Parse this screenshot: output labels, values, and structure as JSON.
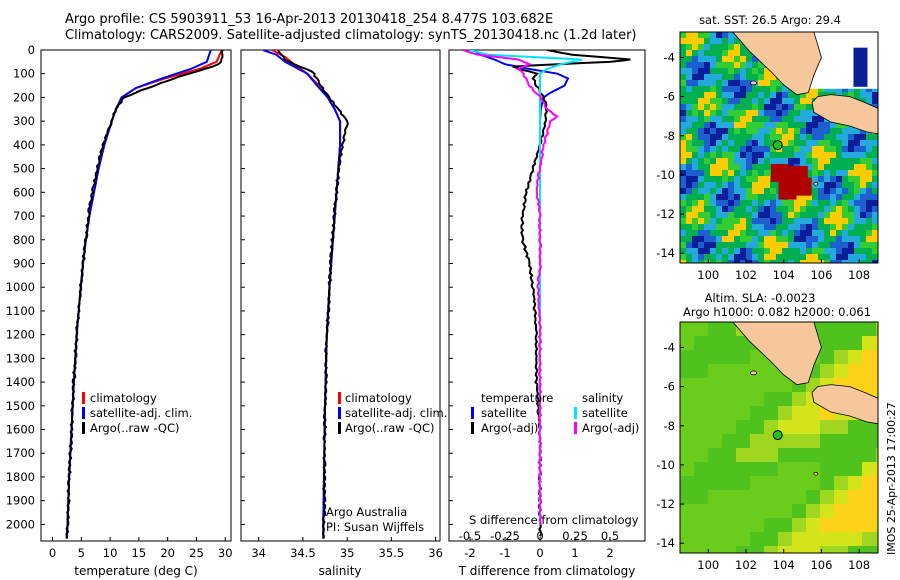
{
  "title": {
    "line1": "Argo profile: CS 5903911_53 16-Apr-2013 20130418_254 8.477S 103.682E",
    "line2": "Climatology: CARS2009. Satellite-adjusted climatology: synTS_20130418.nc (1.2d later)"
  },
  "colors": {
    "red": "#ff0000",
    "blue": "#0000ff",
    "black": "#000000",
    "cyan": "#00e5ff",
    "magenta": "#ff00ff",
    "land": "#f5c79a"
  },
  "depth_axis": {
    "ticks": [
      0,
      100,
      200,
      300,
      400,
      500,
      600,
      700,
      800,
      900,
      1000,
      1100,
      1200,
      1300,
      1400,
      1500,
      1600,
      1700,
      1800,
      1900,
      2000
    ],
    "ylim": [
      0,
      2070
    ],
    "inverted": true
  },
  "chart_data": [
    {
      "type": "line",
      "panel": "temperature",
      "xlabel": "temperature (deg C)",
      "ylabel": "",
      "xlim": [
        -2,
        31
      ],
      "xticks": [
        0,
        5,
        10,
        15,
        20,
        25,
        30
      ],
      "legend": [
        "climatology",
        "satellite-adj. clim.",
        "Argo(..raw -QC)"
      ],
      "series": [
        {
          "name": "climatology",
          "color": "red",
          "depth": [
            0,
            50,
            80,
            120,
            160,
            200,
            250,
            300,
            400,
            500,
            600,
            700,
            800,
            900,
            1000,
            1200,
            1400,
            1600,
            1800,
            2000,
            2060
          ],
          "values": [
            29.4,
            28.5,
            25.5,
            19.5,
            14.5,
            12,
            11,
            10.3,
            9,
            8,
            7.2,
            6.4,
            5.8,
            5.3,
            4.9,
            4.2,
            3.7,
            3.3,
            2.9,
            2.6,
            2.5
          ]
        },
        {
          "name": "satellite-adj. clim.",
          "color": "blue",
          "depth": [
            0,
            50,
            80,
            120,
            160,
            200,
            250,
            300,
            400,
            500,
            600,
            700,
            800,
            900,
            1000,
            1200,
            1400,
            1600,
            1800,
            2000,
            2060
          ],
          "values": [
            27.5,
            26.8,
            24,
            19,
            14.5,
            12,
            11,
            10.3,
            9,
            8,
            7.2,
            6.4,
            5.8,
            5.3,
            4.9,
            4.2,
            3.7,
            3.3,
            2.9,
            2.6,
            2.5
          ]
        },
        {
          "name": "Argo(..raw -QC)",
          "color": "black",
          "depth": [
            0,
            20,
            50,
            70,
            90,
            120,
            160,
            200,
            250,
            300,
            400,
            500,
            600,
            700,
            800,
            900,
            1000,
            1200,
            1400,
            1600,
            1800,
            2000,
            2060
          ],
          "values": [
            29.5,
            29.4,
            29.3,
            28,
            25,
            21,
            16.5,
            12.5,
            11,
            10.2,
            8.8,
            7.7,
            6.9,
            6.2,
            5.8,
            5.3,
            4.9,
            4.2,
            3.7,
            3.3,
            2.9,
            2.6,
            2.5
          ]
        }
      ]
    },
    {
      "type": "line",
      "panel": "salinity",
      "xlabel": "salinity",
      "ylabel": "",
      "xlim": [
        33.8,
        36.05
      ],
      "xticks": [
        34,
        34.5,
        35,
        35.5,
        36
      ],
      "legend": [
        "climatology",
        "satellite-adj. clim.",
        "Argo(..raw -QC)"
      ],
      "annotation": [
        "Argo Australia",
        "PI: Susan Wijffels"
      ],
      "series": [
        {
          "name": "climatology",
          "color": "red",
          "depth": [
            0,
            30,
            60,
            100,
            150,
            200,
            250,
            300,
            400,
            500,
            600,
            800,
            1000,
            1200,
            1500,
            2000,
            2060
          ],
          "values": [
            34.15,
            34.3,
            34.4,
            34.55,
            34.68,
            34.78,
            34.86,
            34.92,
            34.92,
            34.9,
            34.88,
            34.84,
            34.8,
            34.77,
            34.75,
            34.73,
            34.73
          ]
        },
        {
          "name": "satellite-adj. clim.",
          "color": "blue",
          "depth": [
            0,
            20,
            50,
            80,
            100,
            150,
            200,
            250,
            300,
            400,
            500,
            600,
            800,
            1000,
            1200,
            1500,
            2000,
            2060
          ],
          "values": [
            34.05,
            34.2,
            34.3,
            34.45,
            34.55,
            34.66,
            34.78,
            34.86,
            34.92,
            34.92,
            34.9,
            34.88,
            34.84,
            34.8,
            34.77,
            34.75,
            34.73,
            34.73
          ]
        },
        {
          "name": "Argo(..raw -QC)",
          "color": "black",
          "depth": [
            0,
            20,
            40,
            60,
            80,
            100,
            150,
            200,
            250,
            300,
            400,
            500,
            600,
            800,
            1000,
            1200,
            1500,
            2000,
            2060
          ],
          "values": [
            34.22,
            34.25,
            34.3,
            34.4,
            34.55,
            34.62,
            34.7,
            34.8,
            34.9,
            35.0,
            34.95,
            34.9,
            34.88,
            34.83,
            34.8,
            34.77,
            34.75,
            34.74,
            34.73
          ]
        }
      ]
    },
    {
      "type": "line",
      "panel": "difference",
      "xlabel": "T difference from climatology",
      "xlabel_top": "S difference from climatology",
      "xlim": [
        -2.6,
        3.0
      ],
      "xticks": [
        -2,
        -1,
        0,
        1,
        2
      ],
      "s_ticks": [
        "-0.5",
        "-0.25",
        "0",
        "0.25",
        "0.5"
      ],
      "s_tick_values": [
        -2,
        -1,
        0,
        1,
        2
      ],
      "legend_headers": [
        "temperature",
        "salinity"
      ],
      "legend": [
        "satellite",
        "Argo(-adj)",
        "satellite",
        "Argo(-adj)"
      ],
      "series": [
        {
          "name": "satellite",
          "group": "temperature",
          "color": "blue",
          "depth": [
            0,
            20,
            40,
            60,
            80,
            100,
            120,
            150,
            180,
            200,
            250,
            300,
            400,
            600,
            1000,
            1500,
            2000
          ],
          "values": [
            -1.9,
            -1.7,
            -1.3,
            -1.0,
            -0.3,
            0.5,
            0.8,
            0.7,
            0.3,
            0.1,
            0.02,
            0.0,
            0.0,
            0.0,
            0.0,
            0.0,
            0.0
          ]
        },
        {
          "name": "Argo(-adj)",
          "group": "temperature",
          "color": "black",
          "depth": [
            0,
            20,
            40,
            50,
            60,
            70,
            80,
            100,
            120,
            150,
            200,
            250,
            300,
            400,
            500,
            600,
            700,
            800,
            900,
            1000,
            1200,
            1400,
            1600,
            1800,
            2000,
            2050
          ],
          "values": [
            0.2,
            0.9,
            2.6,
            2.0,
            0.5,
            -0.8,
            -0.6,
            -0.1,
            -0.2,
            -0.1,
            0.1,
            0.2,
            0.15,
            0.0,
            -0.2,
            -0.4,
            -0.5,
            -0.5,
            -0.3,
            -0.2,
            -0.1,
            -0.1,
            0.0,
            0.0,
            0.0,
            0.0
          ]
        },
        {
          "name": "satellite",
          "group": "salinity",
          "color": "cyan",
          "depth": [
            0,
            20,
            40,
            60,
            80,
            100,
            150,
            200,
            300,
            500,
            1000,
            1500,
            2000
          ],
          "values": [
            -2.0,
            -1.5,
            1.2,
            0.6,
            0.2,
            0.0,
            0.0,
            0.0,
            0.0,
            0.0,
            0.0,
            0.0,
            0.0
          ]
        },
        {
          "name": "Argo(-adj)",
          "group": "salinity",
          "color": "magenta",
          "depth": [
            0,
            20,
            40,
            60,
            80,
            100,
            120,
            150,
            200,
            250,
            280,
            300,
            400,
            500,
            600,
            700,
            800,
            900,
            1000,
            1200,
            1500,
            2000
          ],
          "values": [
            -2.2,
            -1.8,
            -0.6,
            -0.3,
            -0.6,
            -0.5,
            -0.4,
            -0.3,
            0.0,
            0.2,
            0.5,
            0.3,
            0.1,
            0.0,
            -0.1,
            0.0,
            0.0,
            0.0,
            -0.05,
            0.0,
            0.0,
            0.0
          ]
        }
      ]
    }
  ],
  "maps": [
    {
      "title": "sat. SST: 26.5  Argo: 29.4",
      "xticks": [
        100,
        102,
        104,
        106,
        108
      ],
      "yticks": [
        -4,
        -6,
        -8,
        -10,
        -12,
        -14
      ],
      "xlim": [
        98.5,
        109
      ],
      "ylim": [
        -14.5,
        -2.7
      ],
      "argo_position": [
        103.682,
        -8.477
      ]
    },
    {
      "title": "Altim. SLA: -0.0023",
      "subtitle": "Argo h1000: 0.082  h2000: 0.061",
      "xticks": [
        100,
        102,
        104,
        106,
        108
      ],
      "yticks": [
        -4,
        -6,
        -8,
        -10,
        -12,
        -14
      ],
      "xlim": [
        98.5,
        109
      ],
      "ylim": [
        -14.5,
        -2.7
      ],
      "argo_position": [
        103.682,
        -8.477
      ]
    }
  ],
  "stamp": "IMOS 25-Apr-2013 17:00:27"
}
